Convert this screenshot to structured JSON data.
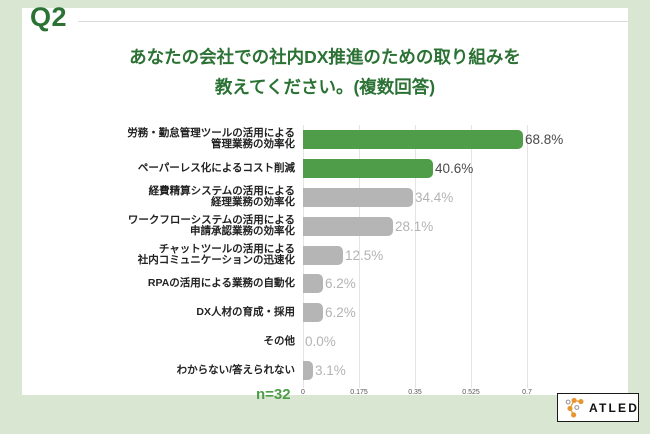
{
  "page": {
    "question_label": "Q2",
    "title_line1": "あなたの会社での社内DX推進のための取り組みを",
    "title_line2": "教えてください。(複数回答)",
    "sample_size": "n=32"
  },
  "chart_data": {
    "type": "bar",
    "orientation": "horizontal",
    "title": "あなたの会社での社内DX推進のための取り組みを教えてください。(複数回答)",
    "categories": [
      [
        "労務・勤怠管理ツールの活用による",
        "管理業務の効率化"
      ],
      [
        "ペーパーレス化によるコスト削減"
      ],
      [
        "経費精算システムの活用による",
        "経理業務の効率化"
      ],
      [
        "ワークフローシステムの活用による",
        "申請承認業務の効率化"
      ],
      [
        "チャットツールの活用による",
        "社内コミュニケーションの迅速化"
      ],
      [
        "RPAの活用による業務の自動化"
      ],
      [
        "DX人材の育成・採用"
      ],
      [
        "その他"
      ],
      [
        "わからない/答えられない"
      ]
    ],
    "values": [
      68.8,
      40.6,
      34.4,
      28.1,
      12.5,
      6.2,
      6.2,
      0.0,
      3.1
    ],
    "value_labels": [
      "68.8%",
      "40.6%",
      "34.4%",
      "28.1%",
      "12.5%",
      "6.2%",
      "6.2%",
      "0.0%",
      "3.1%"
    ],
    "bar_colors": [
      "#4f9d49",
      "#4f9d49",
      "#b5b5b5",
      "#b5b5b5",
      "#b5b5b5",
      "#b5b5b5",
      "#b5b5b5",
      "#b5b5b5",
      "#b5b5b5"
    ],
    "value_label_colors": [
      "#4a4a4a",
      "#4a4a4a",
      "#b3b3b3",
      "#b3b3b3",
      "#b3b3b3",
      "#b3b3b3",
      "#b3b3b3",
      "#b3b3b3",
      "#b3b3b3"
    ],
    "x_ticks": [
      0,
      0.175,
      0.35,
      0.525,
      0.7
    ],
    "x_tick_labels": [
      "0",
      "0.175",
      "0.35",
      "0.525",
      "0.7"
    ],
    "xlim": [
      0,
      0.875
    ],
    "grid": true,
    "legend": false,
    "xlabel": "",
    "ylabel": "",
    "sample_size_note": "n=32"
  },
  "logo": {
    "text": "ATLED",
    "dot_color": "#e8952f",
    "ring_color": "#9a9a9a"
  },
  "colors": {
    "background": "#d8e6d2",
    "card": "#ffffff",
    "heading_green": "#2b7234",
    "bar_green": "#4f9d49",
    "bar_gray": "#b5b5b5",
    "gridline": "#e4e4e4",
    "tick_text": "#555555"
  }
}
